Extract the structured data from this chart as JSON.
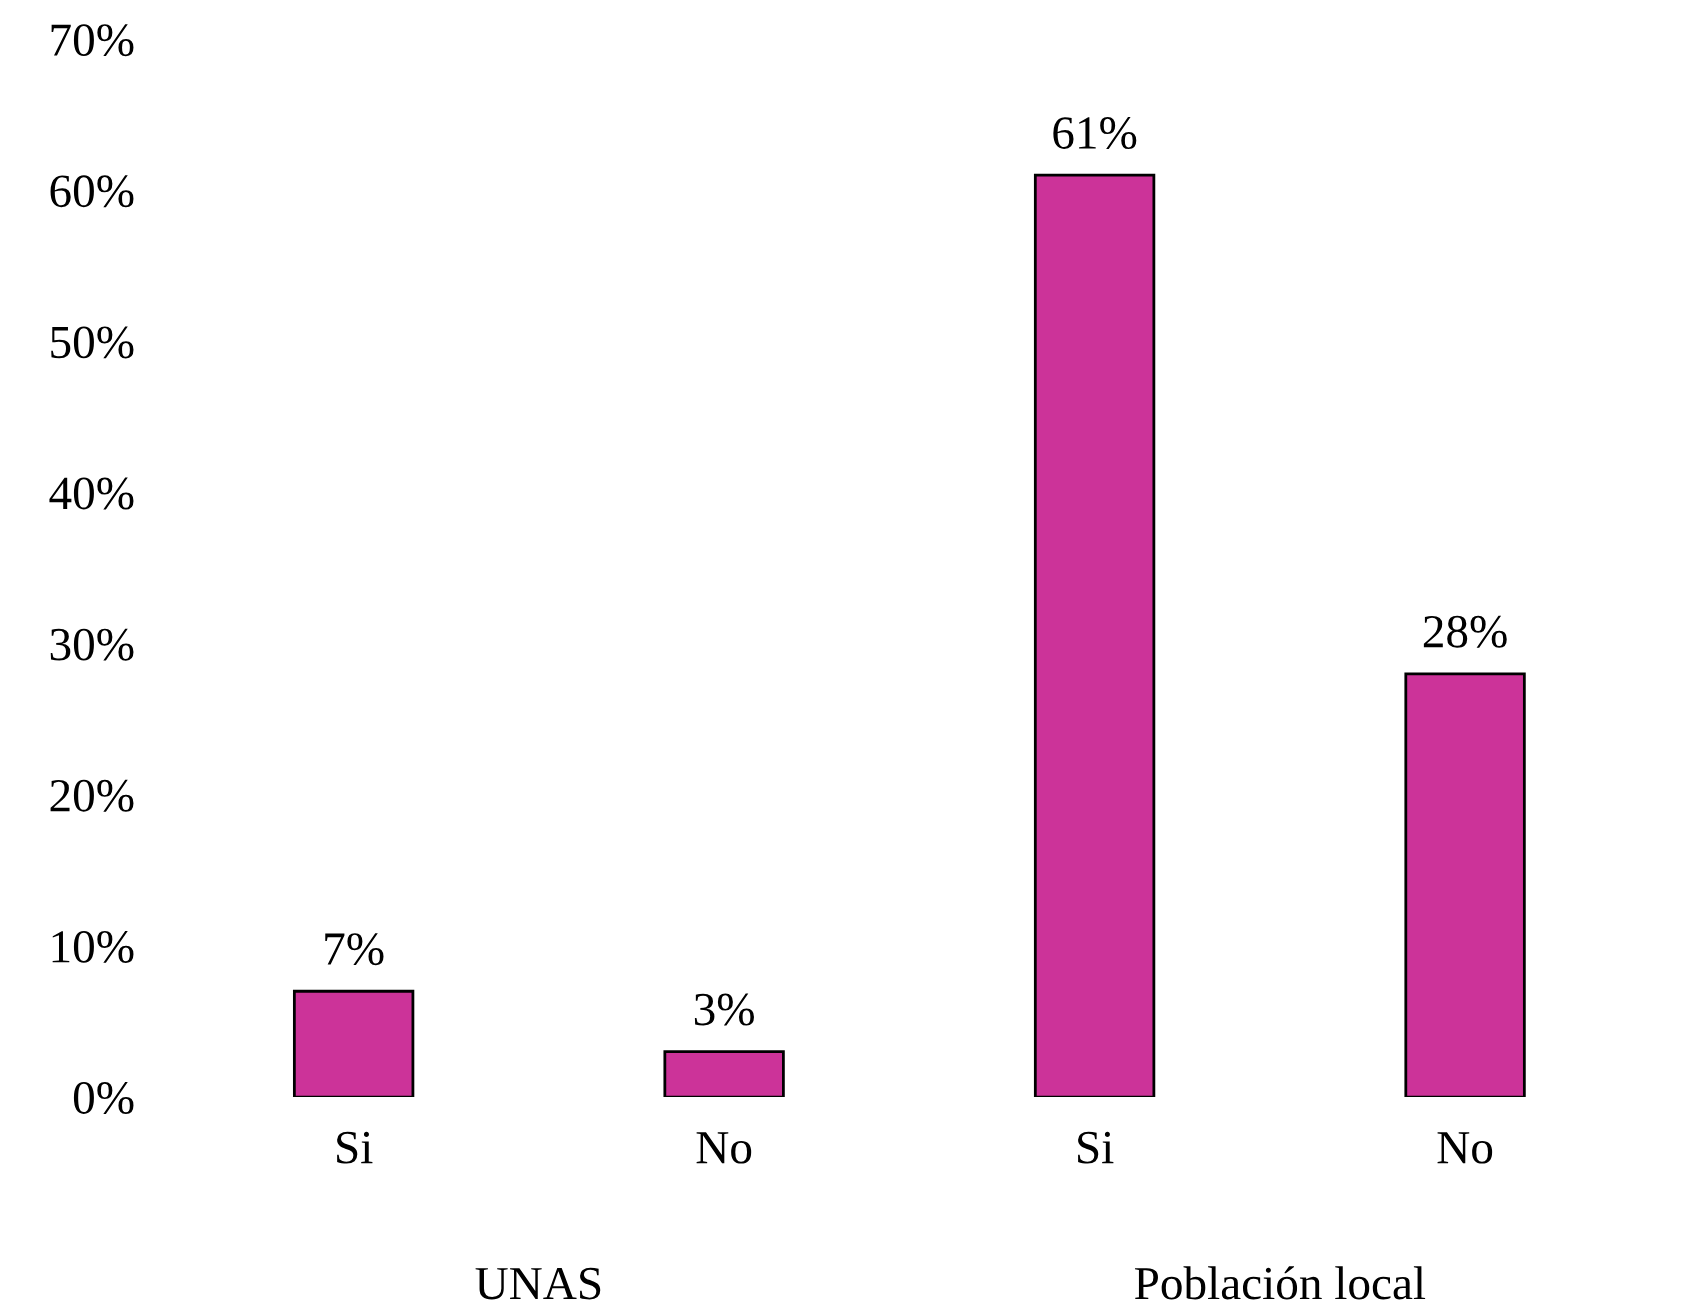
{
  "chart_data": {
    "type": "bar",
    "categories": [
      "Si",
      "No",
      "Si",
      "No"
    ],
    "values": [
      7,
      3,
      61,
      28
    ],
    "value_labels": [
      "7%",
      "3%",
      "61%",
      "28%"
    ],
    "color": "#cc3399",
    "ylim": [
      0,
      70
    ],
    "yticks": [
      {
        "value": 0,
        "label": "0%"
      },
      {
        "value": 10,
        "label": "10%"
      },
      {
        "value": 20,
        "label": "20%"
      },
      {
        "value": 30,
        "label": "30%"
      },
      {
        "value": 40,
        "label": "40%"
      },
      {
        "value": 50,
        "label": "50%"
      },
      {
        "value": 60,
        "label": "60%"
      },
      {
        "value": 70,
        "label": "70%"
      }
    ],
    "annotations": [
      "UNAS",
      "Población local"
    ],
    "grid": false,
    "legend": false
  }
}
